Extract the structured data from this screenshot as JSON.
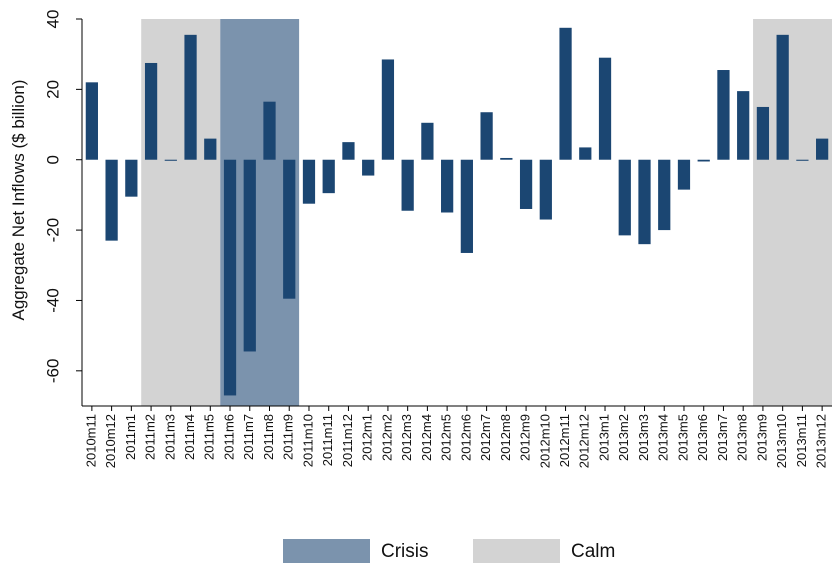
{
  "chart_data": {
    "type": "bar",
    "ylabel": "Aggregate Net Inflows ($ billion)",
    "categories": [
      "2010m11",
      "2010m12",
      "2011m1",
      "2011m2",
      "2011m3",
      "2011m4",
      "2011m5",
      "2011m6",
      "2011m7",
      "2011m8",
      "2011m9",
      "2011m10",
      "2011m11",
      "2011m12",
      "2012m1",
      "2012m2",
      "2012m3",
      "2012m4",
      "2012m5",
      "2012m6",
      "2012m7",
      "2012m8",
      "2012m9",
      "2012m10",
      "2012m11",
      "2012m12",
      "2013m1",
      "2013m2",
      "2013m3",
      "2013m4",
      "2013m5",
      "2013m6",
      "2013m7",
      "2013m8",
      "2013m9",
      "2013m10",
      "2013m11",
      "2013m12"
    ],
    "values": [
      22,
      -23,
      -10.5,
      27.5,
      -0.3,
      35.5,
      6,
      -67,
      -54.5,
      16.5,
      -39.5,
      -12.5,
      -9.5,
      5,
      -4.5,
      28.5,
      -14.5,
      10.5,
      -15,
      -26.5,
      13.5,
      0.5,
      -14,
      -17,
      37.5,
      3.5,
      29,
      -21.5,
      -24,
      -20,
      -8.5,
      -0.5,
      25.5,
      19.5,
      15,
      35.5,
      -0.3,
      6
    ],
    "color": "#1b4672",
    "ylim": [
      -70,
      40
    ],
    "yticks": [
      -60,
      -40,
      -20,
      0,
      20,
      40
    ],
    "regions": [
      {
        "name": "Crisis",
        "color": "#7b93ad",
        "spans": [
          [
            "2011m6",
            "2011m9"
          ]
        ]
      },
      {
        "name": "Calm",
        "color": "#d3d3d3",
        "spans": [
          [
            "2011m2",
            "2011m5"
          ],
          [
            "2013m9",
            "2013m12"
          ]
        ]
      }
    ],
    "legend": "bottom"
  }
}
